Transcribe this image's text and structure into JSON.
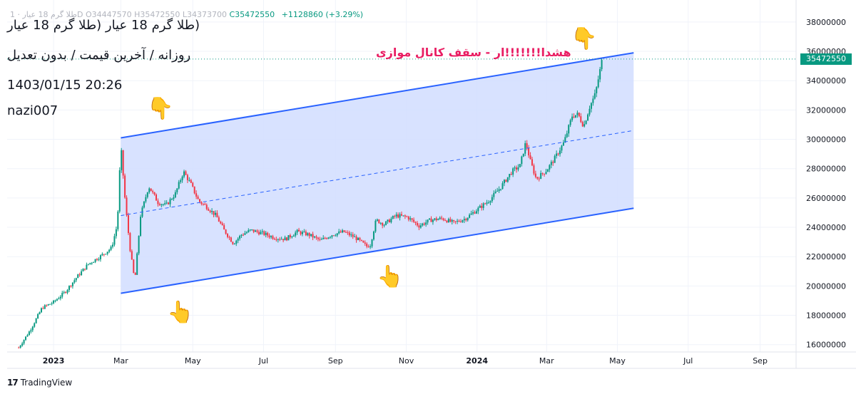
{
  "header": {
    "ohlc_dim": "طلا گرم 18 عیار · 1D  O34447570  H35472550  L34373700",
    "close": "C35472550",
    "change": "+1128860 (+3.29%)"
  },
  "title_block": {
    "symbol": "(طلا گرم 18 عیار (طلا گرم 18 عیار",
    "description": "روزانه / آخرین قیمت / بدون تعدیل",
    "datetime": "1403/01/15 20:26",
    "author": "nazi007"
  },
  "annotation": {
    "text": "هشدا!!!!!!!ار - سقف  کانال موازی"
  },
  "last_price_label": "35472550",
  "footer": {
    "brand": "TradingView",
    "logo": "17"
  },
  "icons": [
    "pointing-down-hand-icon",
    "pointing-up-hand-icon"
  ],
  "colors": {
    "up": "#089981",
    "down": "#f23645",
    "channel_line": "#2962ff",
    "channel_fill": "#d1ddff",
    "annotation": "#e91e63",
    "hand": "#f7c948"
  },
  "chart_data": {
    "type": "candlestick",
    "y_ticks": [
      16000000,
      18000000,
      20000000,
      22000000,
      24000000,
      26000000,
      28000000,
      30000000,
      32000000,
      34000000,
      36000000,
      38000000
    ],
    "x_ticks": [
      {
        "label": "2023",
        "t": 0,
        "bold": true
      },
      {
        "label": "Mar",
        "t": 58,
        "bold": false
      },
      {
        "label": "May",
        "t": 120,
        "bold": false
      },
      {
        "label": "Jul",
        "t": 181,
        "bold": false
      },
      {
        "label": "Sep",
        "t": 243,
        "bold": false
      },
      {
        "label": "Nov",
        "t": 304,
        "bold": false
      },
      {
        "label": "2024",
        "t": 365,
        "bold": true
      },
      {
        "label": "Mar",
        "t": 425,
        "bold": false
      },
      {
        "label": "May",
        "t": 486,
        "bold": false
      },
      {
        "label": "Jul",
        "t": 547,
        "bold": false
      },
      {
        "label": "Sep",
        "t": 609,
        "bold": false
      }
    ],
    "x_unit": "days since 2023-01-01",
    "price_anchors": [
      [
        -30,
        15800000
      ],
      [
        -20,
        17000000
      ],
      [
        -10,
        18500000
      ],
      [
        0,
        18900000
      ],
      [
        10,
        19600000
      ],
      [
        20,
        20600000
      ],
      [
        30,
        21500000
      ],
      [
        40,
        22000000
      ],
      [
        50,
        22600000
      ],
      [
        55,
        24200000
      ],
      [
        58,
        29600000
      ],
      [
        62,
        25500000
      ],
      [
        66,
        22500000
      ],
      [
        70,
        20300000
      ],
      [
        75,
        24800000
      ],
      [
        82,
        26800000
      ],
      [
        90,
        25700000
      ],
      [
        97,
        25500000
      ],
      [
        105,
        26300000
      ],
      [
        112,
        27800000
      ],
      [
        118,
        27000000
      ],
      [
        125,
        25800000
      ],
      [
        132,
        25400000
      ],
      [
        140,
        24800000
      ],
      [
        147,
        23800000
      ],
      [
        155,
        22900000
      ],
      [
        162,
        23500000
      ],
      [
        170,
        23800000
      ],
      [
        180,
        23600000
      ],
      [
        190,
        23300000
      ],
      [
        200,
        23200000
      ],
      [
        210,
        23700000
      ],
      [
        220,
        23500000
      ],
      [
        230,
        23100000
      ],
      [
        240,
        23500000
      ],
      [
        250,
        23700000
      ],
      [
        260,
        23300000
      ],
      [
        270,
        22700000
      ],
      [
        273,
        22800000
      ],
      [
        278,
        24500000
      ],
      [
        285,
        24200000
      ],
      [
        295,
        24800000
      ],
      [
        305,
        24700000
      ],
      [
        315,
        24100000
      ],
      [
        325,
        24500000
      ],
      [
        335,
        24600000
      ],
      [
        345,
        24300000
      ],
      [
        355,
        24600000
      ],
      [
        365,
        25200000
      ],
      [
        375,
        25800000
      ],
      [
        385,
        26700000
      ],
      [
        395,
        27800000
      ],
      [
        402,
        28200000
      ],
      [
        407,
        29800000
      ],
      [
        411,
        28500000
      ],
      [
        416,
        27300000
      ],
      [
        425,
        27900000
      ],
      [
        432,
        28700000
      ],
      [
        440,
        29800000
      ],
      [
        447,
        31600000
      ],
      [
        452,
        31700000
      ],
      [
        457,
        30900000
      ],
      [
        462,
        32200000
      ],
      [
        467,
        33100000
      ],
      [
        473,
        35500000
      ]
    ],
    "channel": {
      "upper": [
        [
          58,
          30100000
        ],
        [
          500,
          35900000
        ]
      ],
      "lower": [
        [
          58,
          19500000
        ],
        [
          500,
          25300000
        ]
      ],
      "middle": [
        [
          58,
          24800000
        ],
        [
          500,
          30600000
        ]
      ]
    },
    "last_price": 35472550
  }
}
